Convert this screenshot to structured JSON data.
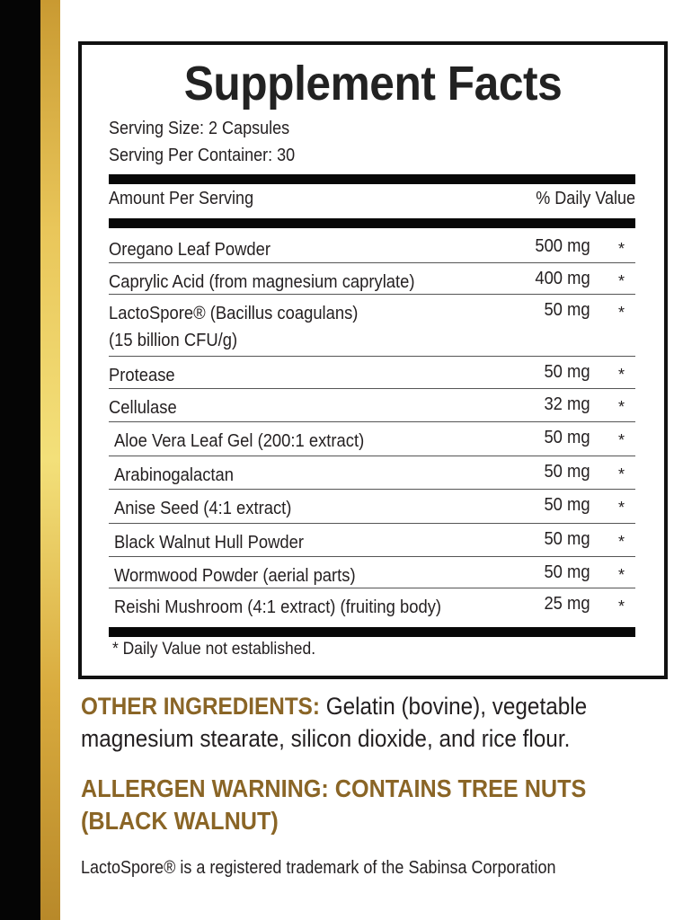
{
  "title": "Supplement Facts",
  "serving_size": "Serving Size: 2 Capsules",
  "servings_per_container": "Serving Per Container: 30",
  "header": {
    "amount": "Amount Per Serving",
    "dv": "% Daily Value"
  },
  "ingredients": [
    {
      "name": "Oregano Leaf Powder",
      "amount": "500 mg",
      "dv": "*"
    },
    {
      "name": "Caprylic Acid (from magnesium caprylate)",
      "amount": "400 mg",
      "dv": "*"
    },
    {
      "name": "LactoSpore® (Bacillus coagulans)",
      "name2": "(15 billion CFU/g)",
      "amount": "50 mg",
      "dv": "*"
    },
    {
      "name": "Protease",
      "amount": "50 mg",
      "dv": "*"
    },
    {
      "name": "Cellulase",
      "amount": "32 mg",
      "dv": "*"
    },
    {
      "name": "Aloe Vera Leaf Gel (200:1 extract)",
      "amount": "50 mg",
      "dv": "*"
    },
    {
      "name": "Arabinogalactan",
      "amount": "50 mg",
      "dv": "*"
    },
    {
      "name": "Anise Seed (4:1 extract)",
      "amount": "50 mg",
      "dv": "*"
    },
    {
      "name": "Black Walnut Hull Powder",
      "amount": "50 mg",
      "dv": "*"
    },
    {
      "name": "Wormwood Powder (aerial parts)",
      "amount": "50 mg",
      "dv": "*"
    },
    {
      "name": "Reishi Mushroom (4:1 extract) (fruiting body)",
      "amount": "25 mg",
      "dv": "*"
    }
  ],
  "footnote": "* Daily Value not established.",
  "other_label": "OTHER INGREDIENTS:",
  "other_text": " Gelatin (bovine), vegetable magnesium stearate, silicon dioxide, and rice flour.",
  "allergen": "ALLERGEN WARNING: CONTAINS TREE NUTS (BLACK WALNUT)",
  "trademark": "LactoSpore® is a registered trademark of the Sabinsa Corporation",
  "colors": {
    "gold_text": "#8a6526",
    "black_bar": "#050505",
    "gold_bar": "#e9c65a"
  }
}
